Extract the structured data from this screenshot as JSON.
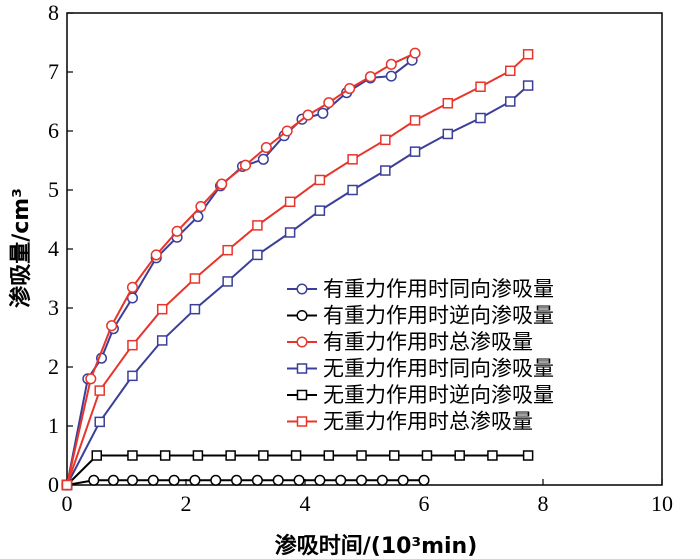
{
  "chart_data": {
    "type": "line",
    "xlabel": "渗吸时间/(10³min)",
    "ylabel": "渗吸量/cm³",
    "xlim": [
      0,
      10
    ],
    "ylim": [
      0,
      8
    ],
    "xticks": [
      "0",
      "2",
      "4",
      "6",
      "8",
      "10"
    ],
    "yticks": [
      "0",
      "1",
      "2",
      "3",
      "4",
      "5",
      "6",
      "7",
      "8"
    ],
    "grid": false,
    "legend_position": "bottom-right",
    "series": [
      {
        "name": "有重力作用时同向渗吸量",
        "color": "#3b3f99",
        "marker": "circle",
        "x": [
          0.0,
          0.35,
          0.58,
          0.78,
          1.1,
          1.5,
          1.85,
          2.2,
          2.58,
          2.95,
          3.3,
          3.65,
          3.95,
          4.3,
          4.7,
          5.1,
          5.45,
          5.8
        ],
        "y": [
          0.0,
          1.8,
          2.15,
          2.65,
          3.17,
          3.85,
          4.2,
          4.55,
          5.07,
          5.4,
          5.52,
          5.92,
          6.2,
          6.3,
          6.65,
          6.9,
          6.93,
          7.2
        ]
      },
      {
        "name": "有重力作用时逆向渗吸量",
        "color": "#000000",
        "marker": "circle",
        "x": [
          0.0,
          0.45,
          0.78,
          1.1,
          1.45,
          1.8,
          2.15,
          2.5,
          2.85,
          3.2,
          3.55,
          3.9,
          4.25,
          4.6,
          4.95,
          5.3,
          5.65,
          6.0
        ],
        "y": [
          0.0,
          0.08,
          0.08,
          0.08,
          0.08,
          0.08,
          0.08,
          0.08,
          0.08,
          0.08,
          0.08,
          0.08,
          0.08,
          0.08,
          0.08,
          0.08,
          0.08,
          0.08
        ]
      },
      {
        "name": "有重力作用时总渗吸量",
        "color": "#e8352b",
        "marker": "circle",
        "x": [
          0.0,
          0.4,
          0.75,
          1.1,
          1.5,
          1.85,
          2.25,
          2.6,
          3.0,
          3.35,
          3.7,
          4.05,
          4.4,
          4.75,
          5.1,
          5.45,
          5.85
        ],
        "y": [
          0.0,
          1.8,
          2.7,
          3.35,
          3.9,
          4.3,
          4.72,
          5.1,
          5.42,
          5.72,
          6.0,
          6.27,
          6.48,
          6.72,
          6.92,
          7.13,
          7.32
        ]
      },
      {
        "name": "无重力作用时同向渗吸量",
        "color": "#3b3f99",
        "marker": "square",
        "x": [
          0.0,
          0.55,
          1.1,
          1.6,
          2.15,
          2.7,
          3.2,
          3.75,
          4.25,
          4.8,
          5.35,
          5.85,
          6.4,
          6.95,
          7.45,
          7.75
        ],
        "y": [
          0.0,
          1.07,
          1.85,
          2.45,
          2.98,
          3.45,
          3.9,
          4.28,
          4.65,
          5.0,
          5.33,
          5.65,
          5.95,
          6.22,
          6.5,
          6.77
        ]
      },
      {
        "name": "无重力作用时逆向渗吸量",
        "color": "#000000",
        "marker": "square",
        "x": [
          0.0,
          0.5,
          1.1,
          1.65,
          2.2,
          2.75,
          3.3,
          3.85,
          4.4,
          4.95,
          5.5,
          6.05,
          6.6,
          7.15,
          7.75
        ],
        "y": [
          0.0,
          0.5,
          0.5,
          0.5,
          0.5,
          0.5,
          0.5,
          0.5,
          0.5,
          0.5,
          0.5,
          0.5,
          0.5,
          0.5,
          0.5
        ]
      },
      {
        "name": "无重力作用时总渗吸量",
        "color": "#e8352b",
        "marker": "square",
        "x": [
          0.0,
          0.55,
          1.1,
          1.6,
          2.15,
          2.7,
          3.2,
          3.75,
          4.25,
          4.8,
          5.35,
          5.85,
          6.4,
          6.95,
          7.45,
          7.75
        ],
        "y": [
          0.0,
          1.6,
          2.37,
          2.98,
          3.5,
          3.98,
          4.4,
          4.8,
          5.17,
          5.52,
          5.85,
          6.18,
          6.47,
          6.75,
          7.02,
          7.3
        ]
      }
    ]
  }
}
